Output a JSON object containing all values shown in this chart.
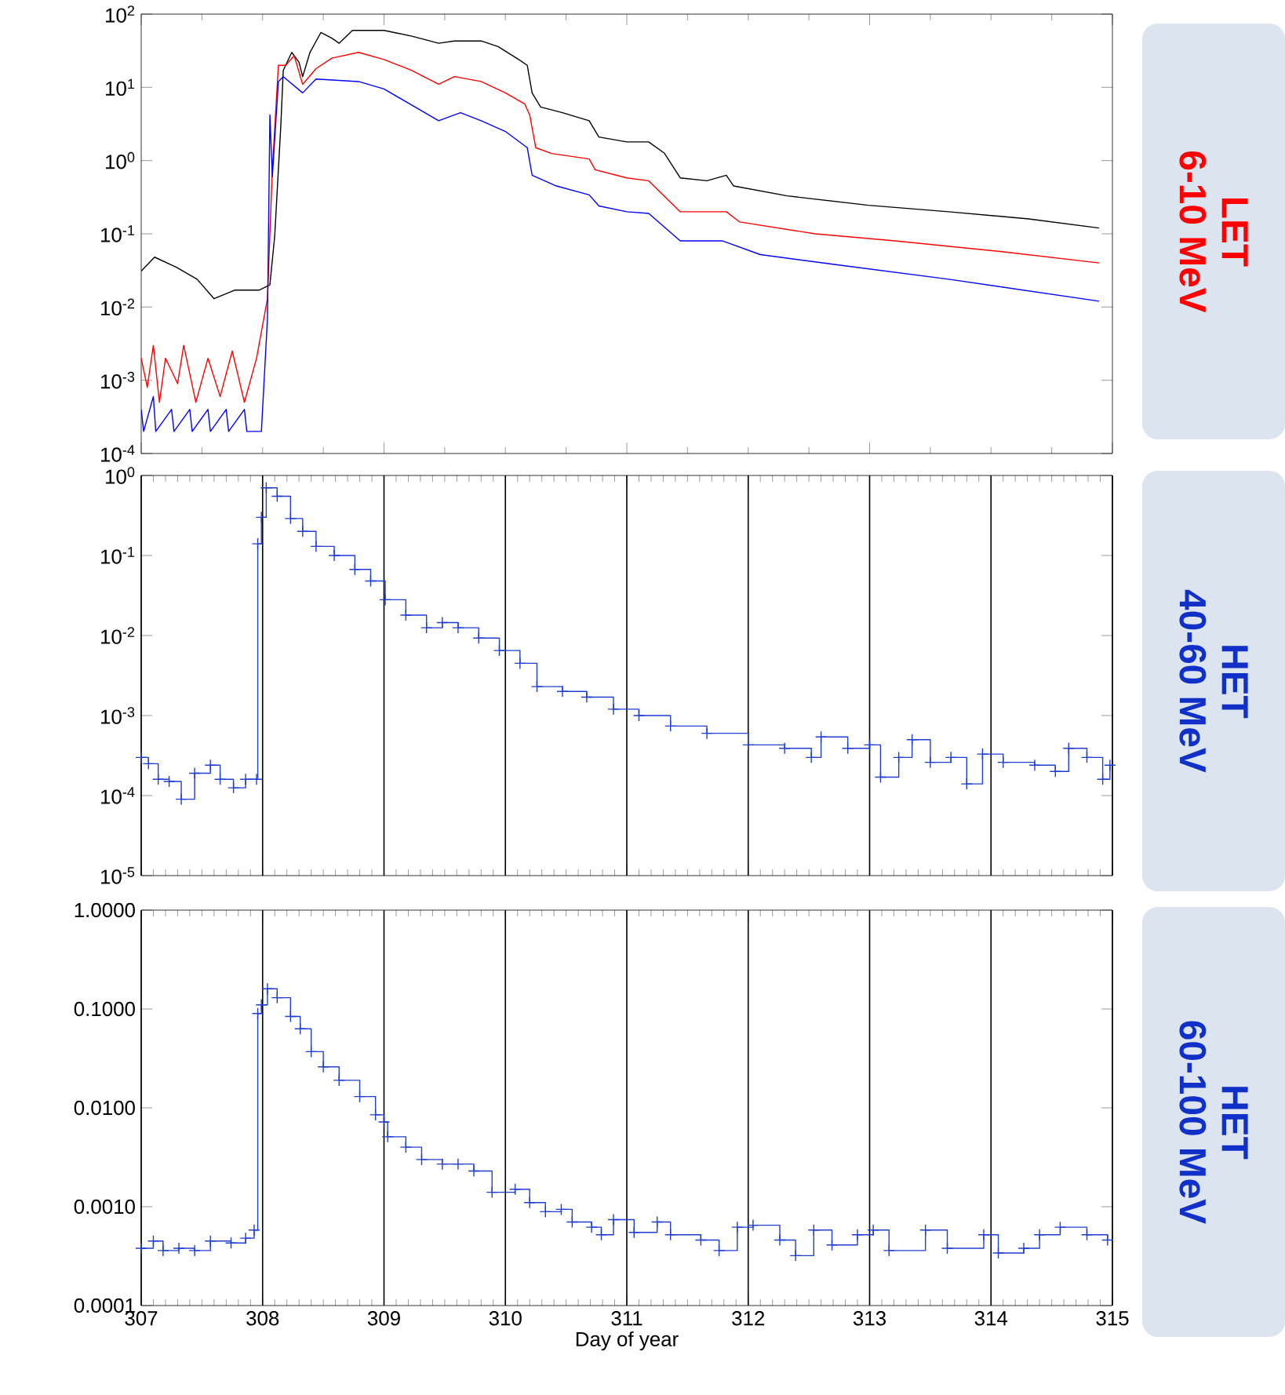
{
  "chart_data": [
    {
      "type": "line",
      "log": "y",
      "marker": "none",
      "tick_labels": "y",
      "annotations": [
        "LET",
        "6-10 MeV"
      ],
      "xlim": [
        307,
        315
      ],
      "ylim": [
        0.0001,
        100
      ],
      "xticks": [
        {
          "value": 307,
          "label": null
        },
        {
          "value": 309,
          "label": null
        },
        {
          "value": 311,
          "label": null
        },
        {
          "value": 313,
          "label": null
        },
        {
          "value": 315,
          "label": null
        }
      ],
      "yticks": [
        {
          "value": 0.0001,
          "label": "10$^{-4}$"
        },
        {
          "value": 0.001,
          "label": "10$^{-3}$"
        },
        {
          "value": 0.01,
          "label": "10$^{-2}$"
        },
        {
          "value": 0.1,
          "label": "10$^{-1}$"
        },
        {
          "value": 1,
          "label": "10$^{0}$"
        },
        {
          "value": 10,
          "label": "10$^{1}$"
        },
        {
          "value": 100,
          "label": "10$^{2}$"
        }
      ],
      "series": [
        {
          "color": "#000000",
          "x": [
            307.0,
            307.11,
            307.29,
            307.46,
            307.6,
            307.77,
            307.97,
            308.06,
            308.1,
            308.15,
            308.17,
            308.24,
            308.3,
            308.33,
            308.39,
            308.48,
            308.57,
            308.63,
            308.74,
            309.0,
            309.23,
            309.45,
            309.58,
            309.8,
            309.94,
            310.11,
            310.18,
            310.22,
            310.29,
            310.47,
            310.69,
            310.77,
            311.0,
            311.18,
            311.31,
            311.44,
            311.66,
            311.82,
            311.88,
            312.32,
            312.99,
            313.65,
            314.31,
            314.89
          ],
          "values": [
            0.031,
            0.048,
            0.035,
            0.024,
            0.013,
            0.017,
            0.017,
            0.02,
            0.095,
            3,
            17,
            30,
            22,
            14,
            30,
            56,
            47,
            40,
            60,
            60,
            50,
            40,
            43,
            43,
            36,
            24,
            20,
            8.4,
            5.4,
            4.5,
            3.5,
            2.1,
            1.8,
            1.8,
            1.26,
            0.58,
            0.53,
            0.63,
            0.45,
            0.33,
            0.245,
            0.2,
            0.16,
            0.12
          ]
        },
        {
          "color": "#ff0000",
          "x": [
            307.0,
            307.05,
            307.1,
            307.15,
            307.2,
            307.3,
            307.35,
            307.45,
            307.55,
            307.65,
            307.75,
            307.85,
            307.95,
            308.04,
            308.08,
            308.13,
            308.19,
            308.26,
            308.33,
            308.44,
            308.57,
            308.79,
            309.0,
            309.23,
            309.45,
            309.58,
            309.8,
            310.0,
            310.16,
            310.2,
            310.25,
            310.38,
            310.69,
            310.74,
            311.0,
            311.18,
            311.44,
            311.82,
            311.93,
            312.55,
            313.21,
            314.09,
            314.89
          ],
          "values": [
            0.002,
            0.0008,
            0.003,
            0.0005,
            0.002,
            0.0009,
            0.003,
            0.0005,
            0.002,
            0.0006,
            0.0025,
            0.0005,
            0.002,
            0.013,
            0.75,
            20,
            20,
            27,
            11,
            18,
            25,
            30,
            24,
            17,
            11,
            14,
            12,
            8.4,
            5.9,
            4.2,
            1.5,
            1.25,
            1.05,
            0.75,
            0.58,
            0.53,
            0.2,
            0.2,
            0.145,
            0.1,
            0.08,
            0.057,
            0.04
          ]
        },
        {
          "color": "#0000ff",
          "x": [
            307.0,
            307.02,
            307.1,
            307.12,
            307.25,
            307.27,
            307.4,
            307.42,
            307.55,
            307.57,
            307.7,
            307.72,
            307.85,
            307.87,
            307.99,
            308.04,
            308.06,
            308.08,
            308.13,
            308.17,
            308.33,
            308.44,
            308.79,
            309.0,
            309.45,
            309.63,
            309.8,
            310.0,
            310.18,
            310.22,
            310.42,
            310.69,
            310.77,
            311.0,
            311.18,
            311.44,
            311.79,
            312.1,
            312.77,
            313.65,
            314.89
          ],
          "values": [
            0.0004,
            0.0002,
            0.0006,
            0.0002,
            0.0004,
            0.0002,
            0.0004,
            0.0002,
            0.0004,
            0.0002,
            0.0004,
            0.0002,
            0.0004,
            0.0002,
            0.0002,
            0.007,
            4.2,
            0.6,
            12,
            14,
            8.4,
            13,
            12,
            9.5,
            3.5,
            4.5,
            3.5,
            2.5,
            1.5,
            0.63,
            0.45,
            0.34,
            0.24,
            0.2,
            0.19,
            0.08,
            0.08,
            0.052,
            0.037,
            0.024,
            0.012
          ]
        }
      ]
    },
    {
      "type": "step",
      "log": "y",
      "marker": "cross",
      "grid": "x",
      "tick_labels": "y",
      "annotations": [
        "HET",
        "40-60 MeV"
      ],
      "xlim": [
        307,
        315
      ],
      "ylim": [
        1e-05,
        1
      ],
      "xticks": [
        {
          "value": 307,
          "label": null
        },
        {
          "value": 308,
          "label": null
        },
        {
          "value": 309,
          "label": null
        },
        {
          "value": 310,
          "label": null
        },
        {
          "value": 311,
          "label": null
        },
        {
          "value": 312,
          "label": null
        },
        {
          "value": 313,
          "label": null
        },
        {
          "value": 314,
          "label": null
        },
        {
          "value": 315,
          "label": null
        }
      ],
      "yticks": [
        {
          "value": 1e-05,
          "label": "10$^{-5}$"
        },
        {
          "value": 0.0001,
          "label": "10$^{-4}$"
        },
        {
          "value": 0.001,
          "label": "10$^{-3}$"
        },
        {
          "value": 0.01,
          "label": "10$^{-2}$"
        },
        {
          "value": 0.1,
          "label": "10$^{-1}$"
        },
        {
          "value": 1,
          "label": "10$^{0}$"
        }
      ],
      "series": [
        {
          "color": "#1f3fd0",
          "x": [
            307.0,
            307.06,
            307.14,
            307.23,
            307.33,
            307.44,
            307.57,
            307.65,
            307.76,
            307.86,
            307.95,
            307.96,
            307.99,
            308.03,
            308.12,
            308.23,
            308.33,
            308.44,
            308.59,
            308.76,
            308.89,
            309.01,
            309.18,
            309.35,
            309.48,
            309.61,
            309.78,
            309.95,
            310.12,
            310.26,
            310.47,
            310.67,
            310.89,
            311.1,
            311.36,
            311.66,
            312.0,
            312.3,
            312.52,
            312.6,
            312.82,
            313.0,
            313.09,
            313.24,
            313.35,
            313.5,
            313.67,
            313.8,
            313.93,
            314.1,
            314.36,
            314.53,
            314.64,
            314.79,
            314.92,
            314.98
          ],
          "values": [
            0.0003,
            0.00025,
            0.00016,
            0.00015,
            9e-05,
            0.00019,
            0.00024,
            0.00016,
            0.000125,
            0.00016,
            0.00016,
            0.14,
            0.3,
            0.7,
            0.55,
            0.29,
            0.2,
            0.13,
            0.1,
            0.067,
            0.048,
            0.028,
            0.018,
            0.0125,
            0.0145,
            0.0125,
            0.0093,
            0.0065,
            0.0045,
            0.0023,
            0.002,
            0.0017,
            0.0012,
            0.001,
            0.00074,
            0.0006,
            0.00043,
            0.00039,
            0.0003,
            0.00054,
            0.00039,
            0.00043,
            0.00017,
            0.0003,
            0.0005,
            0.00026,
            0.0003,
            0.00014,
            0.00033,
            0.00026,
            0.00024,
            0.0002,
            0.00039,
            0.0003,
            0.00016,
            0.00024
          ]
        }
      ]
    },
    {
      "type": "step",
      "log": "y",
      "marker": "cross",
      "grid": "x",
      "xlabel": "Day of year",
      "annotations": [
        "HET",
        "60-100 MeV"
      ],
      "xlim": [
        307,
        315
      ],
      "ylim": [
        0.0001,
        1
      ],
      "xticks": [
        307,
        308,
        309,
        310,
        311,
        312,
        313,
        314,
        315
      ],
      "yticks": [
        {
          "value": 0.0001,
          "label": "0.0001"
        },
        {
          "value": 0.001,
          "label": "0.0010"
        },
        {
          "value": 0.01,
          "label": "0.0100"
        },
        {
          "value": 0.1,
          "label": "0.1000"
        },
        {
          "value": 1,
          "label": "1.0000"
        }
      ],
      "series": [
        {
          "color": "#1f3fd0",
          "x": [
            307.0,
            307.1,
            307.18,
            307.31,
            307.44,
            307.57,
            307.74,
            307.86,
            307.93,
            307.96,
            307.99,
            308.04,
            308.12,
            308.23,
            308.31,
            308.4,
            308.5,
            308.63,
            308.8,
            308.93,
            309.0,
            309.03,
            309.18,
            309.31,
            309.48,
            309.61,
            309.74,
            309.89,
            310.08,
            310.2,
            310.33,
            310.46,
            310.55,
            310.71,
            310.79,
            310.89,
            311.06,
            311.25,
            311.36,
            311.61,
            311.76,
            311.91,
            312.04,
            312.26,
            312.39,
            312.54,
            312.69,
            312.9,
            313.03,
            313.16,
            313.46,
            313.64,
            313.94,
            314.06,
            314.27,
            314.4,
            314.57,
            314.79,
            314.96
          ],
          "values": [
            0.00038,
            0.00045,
            0.00036,
            0.00038,
            0.00036,
            0.00045,
            0.00043,
            0.00048,
            0.00058,
            0.09,
            0.11,
            0.16,
            0.13,
            0.084,
            0.063,
            0.037,
            0.026,
            0.019,
            0.013,
            0.0085,
            0.0072,
            0.0051,
            0.004,
            0.003,
            0.0027,
            0.0027,
            0.0023,
            0.0014,
            0.0015,
            0.0011,
            0.00089,
            0.00094,
            0.0007,
            0.00062,
            0.00052,
            0.00074,
            0.00055,
            0.0007,
            0.00052,
            0.00046,
            0.00036,
            0.00062,
            0.00065,
            0.00046,
            0.00032,
            0.00058,
            0.00041,
            0.00052,
            0.00058,
            0.00036,
            0.00058,
            0.00038,
            0.00052,
            0.00034,
            0.00038,
            0.00052,
            0.00062,
            0.00052,
            0.00046
          ]
        }
      ]
    }
  ]
}
